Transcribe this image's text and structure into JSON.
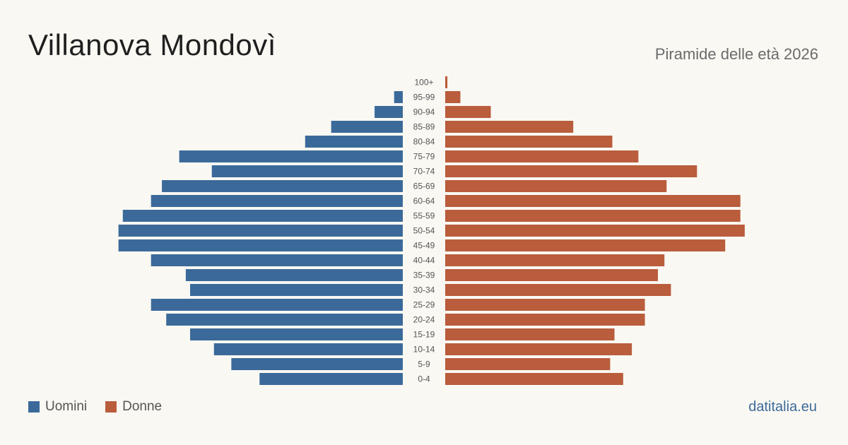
{
  "header": {
    "title": "Villanova Mondovì",
    "subtitle": "Piramide delle età 2026"
  },
  "legend": {
    "men_label": "Uomini",
    "women_label": "Donne"
  },
  "footer": {
    "source": "datitalia.eu"
  },
  "colors": {
    "men": "#3b6a9a",
    "women": "#b95d3c"
  },
  "chart_data": {
    "type": "bar",
    "orientation": "horizontal-population-pyramid",
    "categories": [
      "100+",
      "95-99",
      "90-94",
      "85-89",
      "80-84",
      "75-79",
      "70-74",
      "65-69",
      "60-64",
      "55-59",
      "50-54",
      "45-49",
      "40-44",
      "35-39",
      "30-34",
      "25-29",
      "20-24",
      "15-19",
      "10-14",
      "5-9",
      "0-4"
    ],
    "series": [
      {
        "name": "Uomini",
        "values": [
          0,
          4,
          13,
          33,
          45,
          103,
          88,
          111,
          116,
          129,
          131,
          131,
          116,
          100,
          98,
          116,
          109,
          98,
          87,
          79,
          66
        ]
      },
      {
        "name": "Donne",
        "values": [
          1,
          7,
          21,
          59,
          77,
          89,
          116,
          102,
          136,
          136,
          138,
          129,
          101,
          98,
          104,
          92,
          92,
          78,
          86,
          76,
          82
        ]
      }
    ],
    "xlim": [
      0,
      140
    ]
  }
}
